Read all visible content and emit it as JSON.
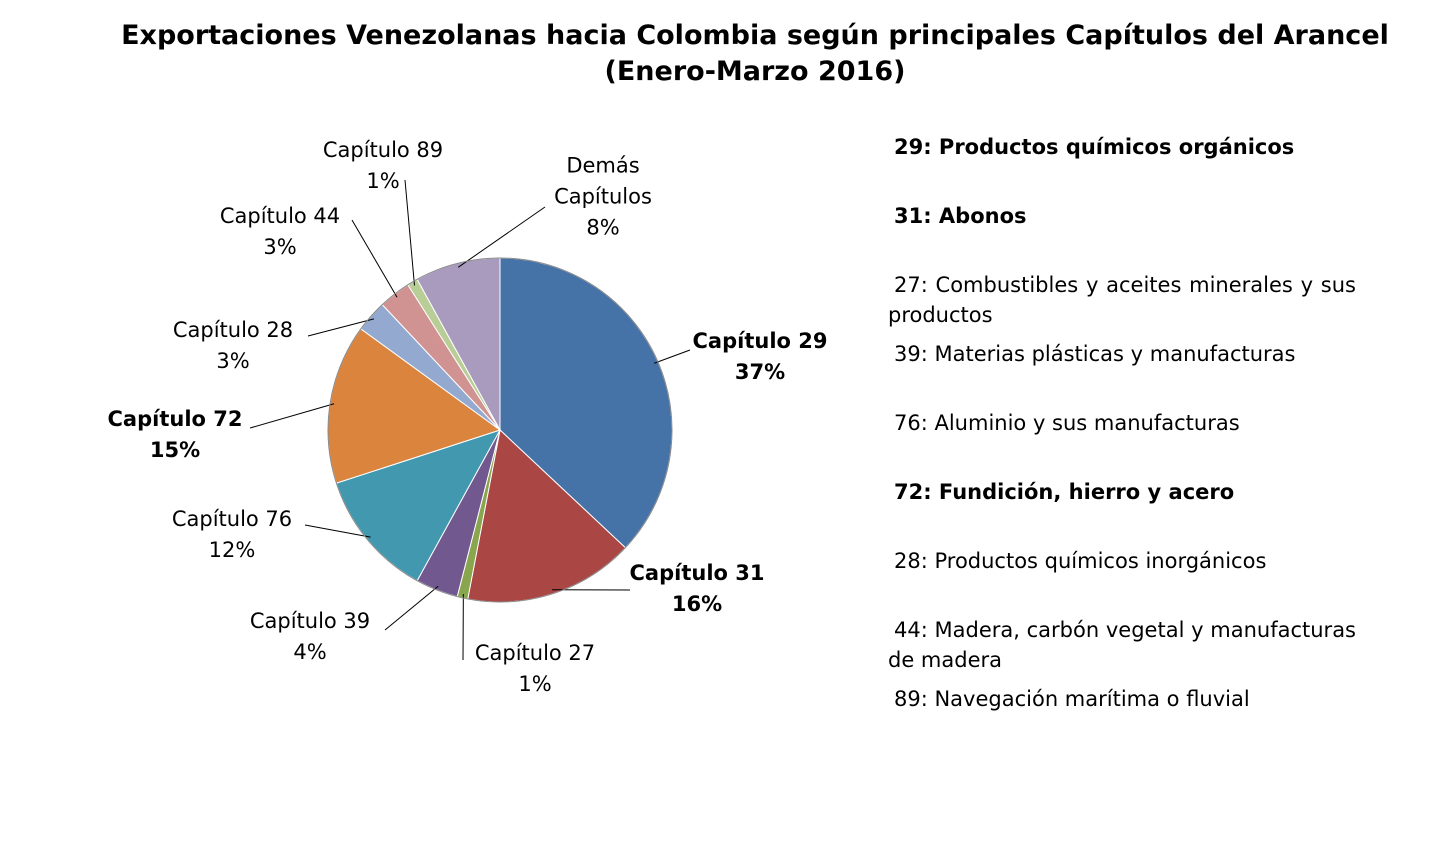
{
  "chart_data": {
    "type": "pie",
    "title": "Exportaciones Venezolanas hacia Colombia según principales Capítulos del Arancel",
    "subtitle": "(Enero-Marzo 2016)",
    "categories": [
      "Capítulo 29",
      "Capítulo 31",
      "Capítulo 27",
      "Capítulo 39",
      "Capítulo 76",
      "Capítulo 72",
      "Capítulo 28",
      "Capítulo 44",
      "Capítulo 89",
      "Demás Capítulos"
    ],
    "values": [
      37,
      16,
      1,
      4,
      12,
      15,
      3,
      3,
      1,
      8
    ],
    "value_labels": [
      "37%",
      "16%",
      "1%",
      "4%",
      "12%",
      "15%",
      "3%",
      "3%",
      "1%",
      "8%"
    ],
    "colors": [
      "#4572a7",
      "#aa4643",
      "#89a54e",
      "#71588f",
      "#4198af",
      "#db843d",
      "#93a9cf",
      "#d19392",
      "#b9cd96",
      "#a99bbd"
    ]
  },
  "notes": [
    "29: Productos químicos orgánicos",
    "31: Abonos",
    "27: Combustibles y aceites minerales y sus productos",
    "39: Materias plásticas y manufacturas",
    "76: Aluminio y sus manufacturas",
    "72: Fundición, hierro y acero",
    "28: Productos químicos inorgánicos",
    "44: Madera, carbón vegetal y manufacturas de madera",
    "89: Navegación marítima o fluvial"
  ]
}
